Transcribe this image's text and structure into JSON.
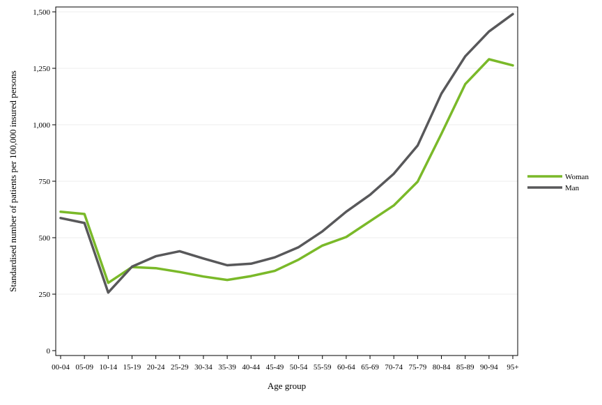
{
  "chart_data": {
    "type": "line",
    "title": "",
    "xlabel": "Age group",
    "ylabel": "Standardised number of patients per 100,000 insured persons",
    "categories": [
      "00-04",
      "05-09",
      "10-14",
      "15-19",
      "20-24",
      "25-29",
      "30-34",
      "35-39",
      "40-44",
      "45-49",
      "50-54",
      "55-59",
      "60-64",
      "65-69",
      "70-74",
      "75-79",
      "80-84",
      "85-89",
      "90-94",
      "95+"
    ],
    "ylim": [
      0,
      1500
    ],
    "yticks": [
      0,
      250,
      500,
      750,
      1000,
      1250,
      1500
    ],
    "ytick_labels": [
      "0",
      "250",
      "500",
      "750",
      "1,000",
      "1,250",
      "1,500"
    ],
    "grid": true,
    "legend_position": "right",
    "series": [
      {
        "name": "Woman",
        "color": "#7ab929",
        "values": [
          615,
          605,
          300,
          370,
          365,
          348,
          328,
          313,
          330,
          353,
          403,
          465,
          503,
          573,
          643,
          748,
          960,
          1180,
          1290,
          1263
        ]
      },
      {
        "name": "Man",
        "color": "#58585a",
        "values": [
          587,
          565,
          257,
          372,
          418,
          440,
          408,
          378,
          385,
          413,
          458,
          528,
          615,
          690,
          783,
          908,
          1138,
          1303,
          1413,
          1490
        ]
      }
    ]
  }
}
